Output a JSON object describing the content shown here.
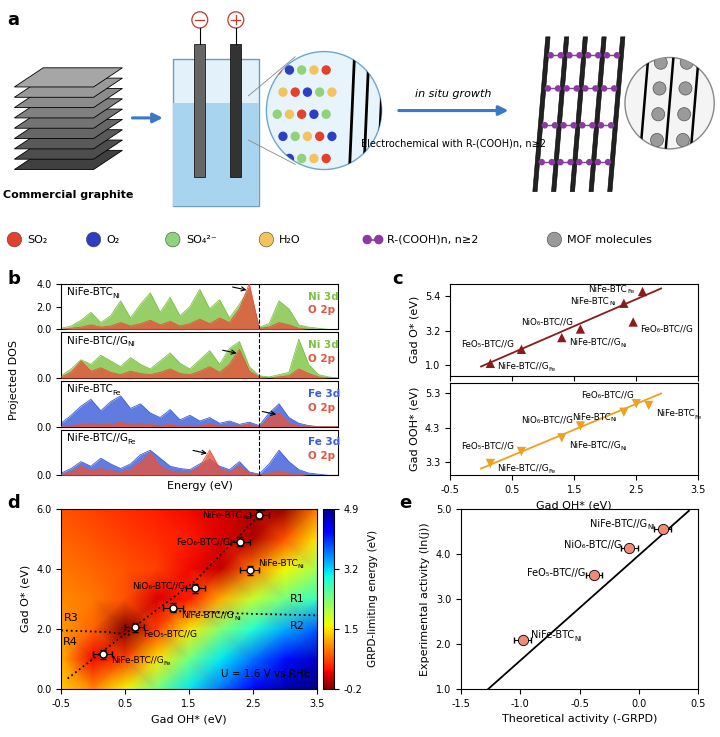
{
  "diagram": {
    "panel_label": "a",
    "graphite_label": "Commercial graphite",
    "arrow_label": "in situ growth",
    "arrow_sublabel": "Electrochemical with R-(COOH)n, n≥2",
    "legend": [
      {
        "label": "SO₂",
        "color": "#e3402d"
      },
      {
        "label": "O₂",
        "color": "#2c3fc4"
      },
      {
        "label": "SO₄²⁻",
        "color": "#8fd37a"
      },
      {
        "label": "H₂O",
        "color": "#f4c35e"
      },
      {
        "label": "R-(COOH)n, n≥2",
        "color": "#8b3aa3"
      },
      {
        "label": "MOF molecules",
        "color": "#9a9a9a"
      }
    ]
  },
  "chart_data": [
    {
      "type": "area",
      "panel_label": "b",
      "xlabel": "Energy (eV)",
      "ylabel": "Projected DOS",
      "tick_labels": "y",
      "xlim": [
        -8.0,
        3.2
      ],
      "vline": 0.0,
      "line_style": "dashed",
      "x": [
        -8.0,
        -7.6,
        -7.2,
        -6.8,
        -6.4,
        -6.0,
        -5.6,
        -5.2,
        -4.8,
        -4.4,
        -4.0,
        -3.6,
        -3.2,
        -2.8,
        -2.4,
        -2.0,
        -1.6,
        -1.2,
        -0.8,
        -0.4,
        0.0,
        0.4,
        0.8,
        1.2,
        1.6,
        2.0,
        2.4,
        2.8,
        3.2
      ],
      "subplots": [
        {
          "title": {
            "text": "NiFe-BTC",
            "sub": "Ni"
          },
          "ylim": [
            0.0,
            4.0
          ],
          "yticks": [
            0.0,
            2.0,
            4.0
          ],
          "series": [
            {
              "name": "Ni 3d",
              "color": "#7cc242",
              "values": [
                0.1,
                0.3,
                0.8,
                1.5,
                0.6,
                1.2,
                2.5,
                1.0,
                2.2,
                3.2,
                1.5,
                2.8,
                1.2,
                2.0,
                3.5,
                1.8,
                2.6,
                1.0,
                2.2,
                3.6,
                0.2,
                0.5,
                2.5,
                1.8,
                0.4,
                0.2,
                0.1,
                0.0,
                0.0
              ]
            },
            {
              "name": "O 2p",
              "color": "#e5533d",
              "values": [
                0.0,
                0.1,
                0.2,
                0.4,
                0.2,
                0.3,
                0.6,
                0.3,
                0.5,
                0.8,
                0.4,
                0.7,
                0.3,
                0.5,
                0.9,
                0.5,
                1.0,
                0.6,
                1.8,
                4.0,
                0.1,
                0.2,
                0.6,
                0.4,
                0.1,
                0.0,
                0.0,
                0.0,
                0.0
              ]
            }
          ]
        },
        {
          "title": {
            "text": "NiFe-BTC//G",
            "sub": "Ni"
          },
          "ylim": [
            0.0,
            4.0
          ],
          "yticks": [
            0.0
          ],
          "series": [
            {
              "name": "Ni 3d",
              "color": "#7cc242",
              "values": [
                0.2,
                0.8,
                1.6,
                1.2,
                2.0,
                1.5,
                1.0,
                1.8,
                1.2,
                0.8,
                1.5,
                2.2,
                1.3,
                0.8,
                1.6,
                2.4,
                1.2,
                2.6,
                3.2,
                1.0,
                0.2,
                0.1,
                0.3,
                0.5,
                3.4,
                1.2,
                0.3,
                0.1,
                0.0
              ]
            },
            {
              "name": "O 2p",
              "color": "#e5533d",
              "values": [
                0.1,
                0.5,
                1.5,
                0.6,
                0.9,
                0.5,
                0.3,
                0.6,
                0.4,
                0.3,
                0.5,
                0.8,
                0.4,
                0.3,
                0.6,
                1.0,
                0.5,
                1.2,
                2.5,
                0.6,
                0.1,
                0.0,
                0.1,
                0.2,
                0.8,
                0.4,
                0.1,
                0.0,
                0.0
              ]
            }
          ]
        },
        {
          "title": {
            "text": "NiFe-BTC",
            "sub": "Fe"
          },
          "ylim": [
            0.0,
            4.0
          ],
          "yticks": [
            0.0
          ],
          "series": [
            {
              "name": "Fe 3d",
              "color": "#3a5bd9",
              "values": [
                0.3,
                1.0,
                1.8,
                2.4,
                1.4,
                2.2,
                2.7,
                1.6,
                2.0,
                1.2,
                0.8,
                1.5,
                0.6,
                1.0,
                0.5,
                0.8,
                0.3,
                0.5,
                0.2,
                0.4,
                0.1,
                1.2,
                2.0,
                0.8,
                0.3,
                0.1,
                0.0,
                0.0,
                0.0
              ]
            },
            {
              "name": "O 2p",
              "color": "#e5533d",
              "values": [
                0.0,
                0.1,
                0.2,
                0.3,
                0.2,
                0.2,
                0.4,
                0.2,
                0.3,
                0.2,
                0.1,
                0.2,
                0.1,
                0.1,
                0.1,
                0.2,
                0.1,
                0.1,
                0.1,
                0.2,
                0.0,
                0.8,
                1.2,
                0.3,
                0.1,
                0.0,
                0.0,
                0.0,
                0.0
              ]
            }
          ]
        },
        {
          "title": {
            "text": "NiFe-BTC//G",
            "sub": "Fe"
          },
          "ylim": [
            0.0,
            4.0
          ],
          "yticks": [
            0.0
          ],
          "series": [
            {
              "name": "Fe 3d",
              "color": "#3a5bd9",
              "values": [
                0.2,
                0.6,
                1.2,
                0.8,
                1.5,
                1.0,
                0.6,
                1.0,
                1.8,
                2.2,
                1.5,
                0.8,
                0.6,
                0.5,
                1.0,
                1.4,
                0.8,
                0.5,
                1.2,
                0.3,
                0.1,
                1.0,
                2.2,
                1.2,
                0.5,
                0.2,
                0.1,
                0.0,
                0.0
              ]
            },
            {
              "name": "O 2p",
              "color": "#e5533d",
              "values": [
                0.1,
                0.3,
                0.8,
                0.4,
                0.6,
                0.4,
                0.3,
                0.5,
                1.2,
                2.0,
                0.8,
                0.4,
                0.3,
                0.3,
                0.8,
                2.2,
                0.6,
                0.3,
                0.8,
                0.2,
                0.0,
                0.2,
                0.4,
                0.2,
                0.1,
                0.0,
                0.0,
                0.0,
                0.0
              ]
            }
          ]
        }
      ]
    },
    {
      "type": "scatter",
      "panel_label": "c",
      "xlabel": "Gad OH* (eV)",
      "xlim": [
        -0.5,
        3.5
      ],
      "xticks": [
        -0.5,
        0.5,
        1.5,
        2.5,
        3.5
      ],
      "subplots": [
        {
          "ylabel": "Gad O* (eV)",
          "ylim": [
            0.3,
            6.2
          ],
          "yticks": [
            1.0,
            3.2,
            5.4
          ],
          "color": "#8b1a1a",
          "marker": "triangle_up",
          "fit": {
            "x": [
              0.0,
              2.9
            ],
            "y": [
              0.9,
              5.9
            ]
          },
          "points": [
            {
              "label": {
                "text": "NiFe-BTC",
                "sub": "Fe"
              },
              "x": 2.6,
              "y": 5.7
            },
            {
              "label": {
                "text": "NiFe-BTC",
                "sub": "Ni"
              },
              "x": 2.3,
              "y": 4.95
            },
            {
              "label": {
                "text": "NiO₆-BTC//G"
              },
              "x": 1.6,
              "y": 3.3
            },
            {
              "label": {
                "text": "FeO₆-BTC//G"
              },
              "x": 2.45,
              "y": 3.75
            },
            {
              "label": {
                "text": "FeO₅-BTC//G"
              },
              "x": 0.65,
              "y": 2.0
            },
            {
              "label": {
                "text": "NiFe-BTC//G",
                "sub": "Ni"
              },
              "x": 1.3,
              "y": 2.75
            },
            {
              "label": {
                "text": "NiFe-BTC//G",
                "sub": "Fe"
              },
              "x": 0.15,
              "y": 1.1
            }
          ]
        },
        {
          "ylabel": "Gad OOH* (eV)",
          "ylim": [
            2.9,
            5.6
          ],
          "yticks": [
            3.3,
            4.3,
            5.3
          ],
          "color": "#f0a020",
          "marker": "triangle_down",
          "fit": {
            "x": [
              0.0,
              2.9
            ],
            "y": [
              3.1,
              5.3
            ]
          },
          "points": [
            {
              "label": {
                "text": "NiFe-BTC",
                "sub": "Fe"
              },
              "x": 2.7,
              "y": 4.95
            },
            {
              "label": {
                "text": "FeO₆-BTC//G"
              },
              "x": 2.5,
              "y": 5.0
            },
            {
              "label": {
                "text": "NiFe-BTC",
                "sub": "Ni"
              },
              "x": 2.3,
              "y": 4.75
            },
            {
              "label": {
                "text": "NiO₆-BTC//G"
              },
              "x": 1.6,
              "y": 4.35
            },
            {
              "label": {
                "text": "NiFe-BTC//G",
                "sub": "Ni"
              },
              "x": 1.3,
              "y": 4.0
            },
            {
              "label": {
                "text": "FeO₅-BTC//G"
              },
              "x": 0.65,
              "y": 3.6
            },
            {
              "label": {
                "text": "NiFe-BTC//G",
                "sub": "Fe"
              },
              "x": 0.15,
              "y": 3.25
            }
          ]
        }
      ]
    },
    {
      "type": "heatmap",
      "panel_label": "d",
      "xlabel": "Gad OH* (eV)",
      "ylabel": "Gad O* (eV)",
      "xlim": [
        -0.5,
        3.5
      ],
      "ylim": [
        0.0,
        6.0
      ],
      "xticks": [
        -0.5,
        0.5,
        1.5,
        2.5,
        3.5
      ],
      "yticks": [
        0.0,
        2.0,
        4.0,
        6.0
      ],
      "grid_x": [
        -0.5,
        0.0,
        0.5,
        1.0,
        1.5,
        2.0,
        2.5,
        3.0,
        3.5
      ],
      "grid_y": [
        0.0,
        1.0,
        2.0,
        3.0,
        4.0,
        5.0,
        6.0
      ],
      "cells": [
        [
          1.4,
          1.0,
          1.6,
          2.4,
          3.1,
          3.7,
          4.3,
          4.7,
          4.9
        ],
        [
          1.2,
          0.3,
          0.6,
          1.5,
          2.4,
          3.1,
          3.7,
          4.2,
          4.6
        ],
        [
          1.1,
          0.8,
          -0.2,
          0.6,
          1.5,
          2.3,
          2.9,
          3.4,
          3.8
        ],
        [
          1.0,
          0.9,
          0.7,
          0.2,
          0.4,
          1.2,
          1.9,
          2.4,
          2.8
        ],
        [
          0.9,
          0.8,
          0.7,
          0.6,
          0.3,
          0.1,
          0.9,
          1.6,
          2.1
        ],
        [
          0.8,
          0.7,
          0.6,
          0.5,
          0.4,
          0.2,
          0.0,
          0.7,
          1.5
        ],
        [
          0.7,
          0.6,
          0.5,
          0.4,
          0.3,
          0.2,
          0.0,
          -0.1,
          0.9
        ]
      ],
      "colorbar": {
        "label": "GRPD-limiting energy (eV)",
        "range": [
          -0.2,
          4.9
        ],
        "ticks": [
          -0.2,
          1.5,
          3.2,
          4.9
        ]
      },
      "line_style": "dotted",
      "boundaries": [
        {
          "x": [
            -0.4,
            0.6,
            1.6,
            2.7
          ],
          "y": [
            0.35,
            2.0,
            3.6,
            6.0
          ]
        },
        {
          "x": [
            -0.5,
            0.2,
            0.6
          ],
          "y": [
            1.95,
            1.9,
            1.8
          ]
        },
        {
          "x": [
            1.2,
            1.8,
            2.5,
            3.5
          ],
          "y": [
            2.6,
            2.55,
            2.5,
            2.45
          ]
        }
      ],
      "points": [
        {
          "label": {
            "text": "NiFe-BTC",
            "sub": "Fe"
          },
          "x": 2.6,
          "y": 5.8,
          "x_error": 0.15,
          "y_error": 0.15
        },
        {
          "label": {
            "text": "FeO₆-BTC//G"
          },
          "x": 2.3,
          "y": 4.9,
          "x_error": 0.15,
          "y_error": 0.15
        },
        {
          "label": {
            "text": "NiFe-BTC",
            "sub": "Ni"
          },
          "x": 2.45,
          "y": 3.95,
          "x_error": 0.15,
          "y_error": 0.15
        },
        {
          "label": {
            "text": "NiO₆-BTC//G"
          },
          "x": 1.6,
          "y": 3.35,
          "x_error": 0.15,
          "y_error": 0.15
        },
        {
          "label": {
            "text": "NiFe-BTC//G",
            "sub": "Ni"
          },
          "x": 1.25,
          "y": 2.7,
          "x_error": 0.15,
          "y_error": 0.15
        },
        {
          "label": {
            "text": "FeO₅-BTC//G"
          },
          "x": 0.65,
          "y": 2.05,
          "x_error": 0.15,
          "y_error": 0.15
        },
        {
          "label": {
            "text": "NiFe-BTC//G",
            "sub": "Fe"
          },
          "x": 0.15,
          "y": 1.15,
          "x_error": 0.15,
          "y_error": 0.15
        }
      ],
      "annotations": [
        {
          "text": "R1",
          "x": 3.2,
          "y": 3.0
        },
        {
          "text": "R2",
          "x": 3.2,
          "y": 2.1
        },
        {
          "text": "R3",
          "x": -0.35,
          "y": 2.35
        },
        {
          "text": "R4",
          "x": -0.35,
          "y": 1.55
        },
        {
          "text": "U = 1.6 V vs RHE",
          "x": 2.0,
          "y": 0.5
        }
      ]
    },
    {
      "type": "scatter",
      "panel_label": "e",
      "xlabel": "Theoretical activity (-GRPD)",
      "ylabel": "Experimental activity (ln(j))",
      "xlim": [
        -1.5,
        0.5
      ],
      "ylim": [
        1.0,
        5.0
      ],
      "xticks": [
        -1.5,
        -1.0,
        -0.5,
        0.0,
        0.5
      ],
      "yticks": [
        1.0,
        2.0,
        3.0,
        4.0,
        5.0
      ],
      "color": "#f08a78",
      "marker": "circle",
      "fit": {
        "x": [
          -1.27,
          0.42
        ],
        "y": [
          1.0,
          4.95
        ]
      },
      "points": [
        {
          "label": {
            "text": "NiFe-BTC//G",
            "sub": "Ni"
          },
          "x": 0.2,
          "y": 4.55,
          "x_error": 0.07
        },
        {
          "label": {
            "text": "NiO₆-BTC//G"
          },
          "x": -0.08,
          "y": 4.12,
          "x_error": 0.07
        },
        {
          "label": {
            "text": "FeO₅-BTC//G"
          },
          "x": -0.38,
          "y": 3.52,
          "x_error": 0.07
        },
        {
          "label": {
            "text": "NiFe-BTC",
            "sub": "Ni"
          },
          "x": -0.98,
          "y": 2.08,
          "x_error": 0.07
        }
      ]
    }
  ]
}
